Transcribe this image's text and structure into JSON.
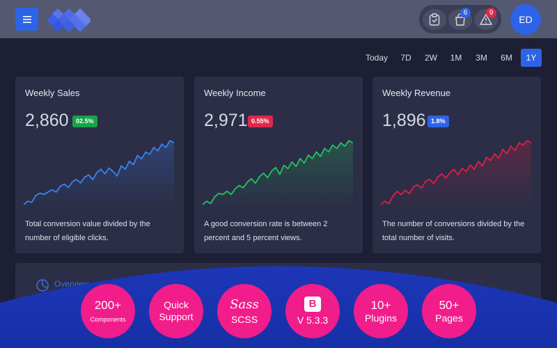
{
  "header": {
    "menu_icon": "hamburger-icon",
    "logo_icon": "diamond-grid-logo",
    "icons": [
      {
        "name": "clipboard-icon"
      },
      {
        "name": "shopping-bag-icon",
        "badge": "6",
        "badge_color": "#2d63e6"
      },
      {
        "name": "warning-icon",
        "badge": "9",
        "badge_color": "#e0284a"
      }
    ],
    "avatar": "ED",
    "colors": {
      "header_bg": "#545871",
      "accent": "#2d63e6"
    }
  },
  "periods": {
    "items": [
      "Today",
      "7D",
      "2W",
      "1M",
      "3M",
      "6M",
      "1Y"
    ],
    "active": "1Y"
  },
  "cards": [
    {
      "title": "Weekly Sales",
      "value": "2,860",
      "change": "02.5%",
      "change_color": "#16a34a",
      "line_color": "#3b82f6",
      "description": "Total conversion value divided by the number of eligible clicks.",
      "series": [
        2,
        5,
        4,
        10,
        12,
        11,
        13,
        15,
        13,
        18,
        20,
        17,
        22,
        24,
        21,
        26,
        28,
        24,
        30,
        33,
        29,
        34,
        31,
        27,
        36,
        33,
        40,
        37,
        45,
        42,
        48,
        46,
        52,
        49,
        55,
        52,
        58,
        56
      ]
    },
    {
      "title": "Weekly Income",
      "value": "2,971",
      "change": "0.55%",
      "change_color": "#e0284a",
      "line_color": "#22c55e",
      "description": "A good conversion rate is between 2 percent and 5 percent views.",
      "series": [
        3,
        6,
        4,
        10,
        13,
        12,
        15,
        12,
        17,
        20,
        18,
        23,
        26,
        22,
        28,
        31,
        27,
        33,
        36,
        30,
        38,
        35,
        41,
        37,
        44,
        40,
        47,
        44,
        50,
        46,
        53,
        50,
        56,
        53,
        58,
        55,
        60,
        58
      ]
    },
    {
      "title": "Weekly Revenue",
      "value": "1,896",
      "change": "1.8%",
      "change_color": "#2d63e6",
      "line_color": "#e11d48",
      "description": "The number of conversions divided by the total number of visits.",
      "series": [
        2,
        5,
        3,
        10,
        14,
        11,
        15,
        12,
        18,
        20,
        17,
        23,
        25,
        21,
        27,
        30,
        26,
        31,
        34,
        29,
        35,
        32,
        38,
        34,
        41,
        37,
        45,
        42,
        48,
        44,
        52,
        48,
        55,
        51,
        58,
        56,
        60,
        58
      ]
    }
  ],
  "overview": {
    "label": "Overview",
    "icon": "pie-chart-icon"
  },
  "promo": [
    {
      "line1": "200+",
      "line2": "Components"
    },
    {
      "line1": "Quick",
      "line2": "Support"
    },
    {
      "logo": "Sass",
      "line2": "SCSS"
    },
    {
      "logo": "B",
      "line2": "V 5.3.3"
    },
    {
      "line1": "10+",
      "line2": "Plugins"
    },
    {
      "line1": "50+",
      "line2": "Pages"
    }
  ]
}
